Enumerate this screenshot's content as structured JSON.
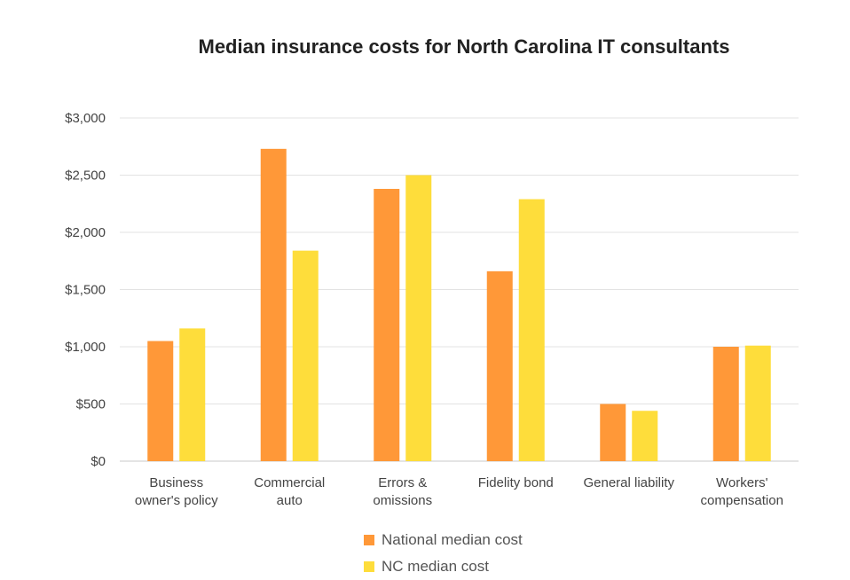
{
  "chart_data": {
    "type": "bar",
    "title": "Median insurance costs for North Carolina IT consultants",
    "categories": [
      [
        "Business",
        "owner's policy"
      ],
      [
        "Commercial",
        "auto"
      ],
      [
        "Errors &",
        "omissions"
      ],
      [
        "Fidelity bond"
      ],
      [
        "General liability"
      ],
      [
        "Workers'",
        "compensation"
      ]
    ],
    "series": [
      {
        "name": "National median cost",
        "color": "#FF9838",
        "values": [
          1050,
          2730,
          2380,
          1660,
          500,
          1000
        ]
      },
      {
        "name": "NC median cost",
        "color": "#FEDD3B",
        "values": [
          1160,
          1840,
          2500,
          2290,
          440,
          1010
        ]
      }
    ],
    "ylim": [
      0,
      3000
    ],
    "yticks": [
      0,
      500,
      1000,
      1500,
      2000,
      2500,
      3000
    ],
    "ytick_labels": [
      "$0",
      "$500",
      "$1,000",
      "$1,500",
      "$2,000",
      "$2,500",
      "$3,000"
    ],
    "grid": true,
    "legend_position": "bottom"
  }
}
